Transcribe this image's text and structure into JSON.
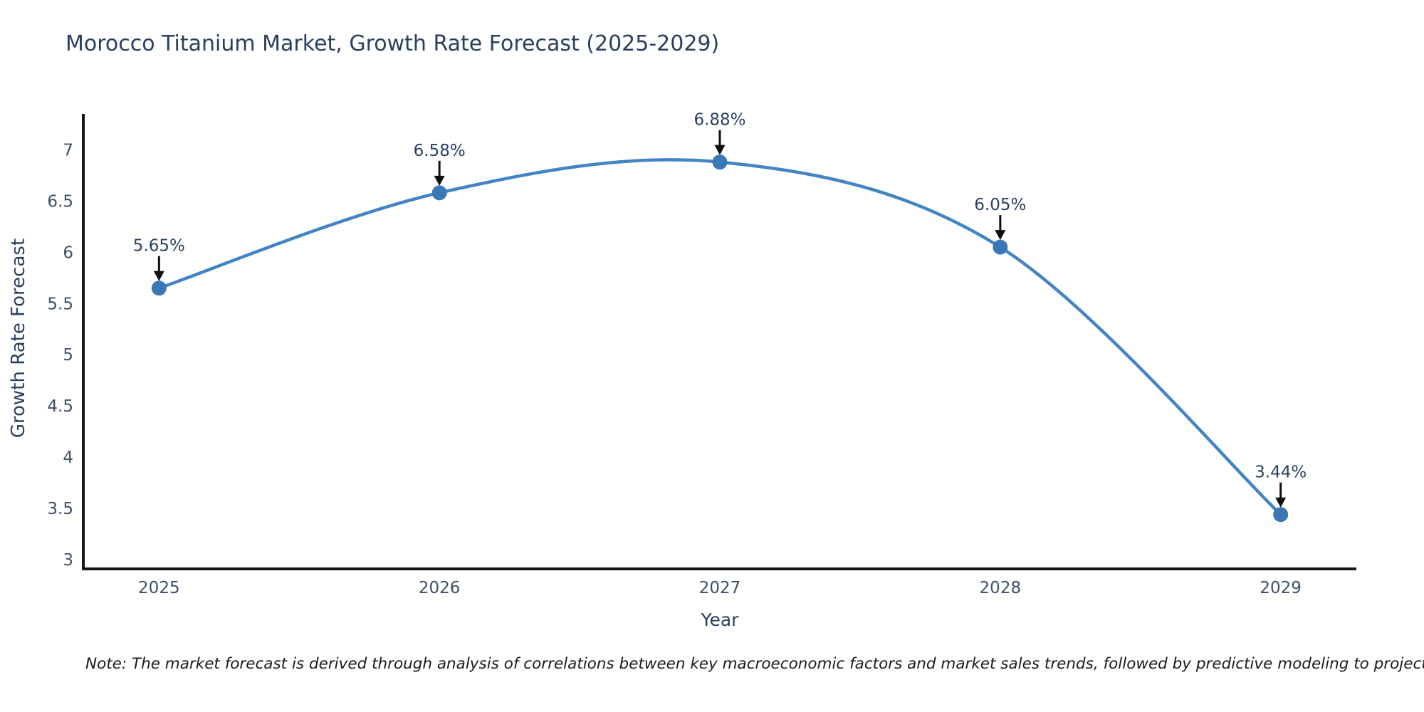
{
  "chart": {
    "title": "Morocco Titanium Market, Growth Rate Forecast (2025-2029)",
    "x_axis": {
      "label": "Year"
    },
    "y_axis": {
      "label": "Growth Rate Forecast"
    },
    "note": "Note: The market forecast is derived through analysis of correlations between key macroeconomic factors and market sales trends, followed by predictive modeling to project future sales"
  },
  "chart_data": {
    "type": "line",
    "line_shape": "spline",
    "title": "Morocco Titanium Market, Growth Rate Forecast (2025-2029)",
    "xlabel": "Year",
    "ylabel": "Growth Rate Forecast",
    "x": [
      2025,
      2026,
      2027,
      2028,
      2029
    ],
    "series": [
      {
        "name": "Growth Rate Forecast",
        "values": [
          5.65,
          6.58,
          6.88,
          6.05,
          3.44
        ]
      }
    ],
    "point_labels": [
      "5.65%",
      "6.58%",
      "6.88%",
      "6.05%",
      "3.44%"
    ],
    "xticks": [
      "2025",
      "2026",
      "2027",
      "2028",
      "2029"
    ],
    "yticks": [
      3,
      3.5,
      4,
      4.5,
      5,
      5.5,
      6,
      6.5,
      7
    ],
    "xlim": [
      2024.73,
      2029.27
    ],
    "ylim": [
      2.91,
      7.35
    ],
    "grid": false,
    "legend": false,
    "annotation_style": "value-label-with-down-arrow"
  },
  "style": {
    "background": "#ffffff",
    "line_color": "#4384c4",
    "marker_color": "#3a78b5",
    "axis_line_color": "#111418",
    "title_color": "#2a3f5f",
    "tick_label_color": "#3f4f66",
    "annotation_text_color": "#2a3f5f",
    "arrow_color": "#0d0f14",
    "note_color": "#1a1a1a"
  }
}
